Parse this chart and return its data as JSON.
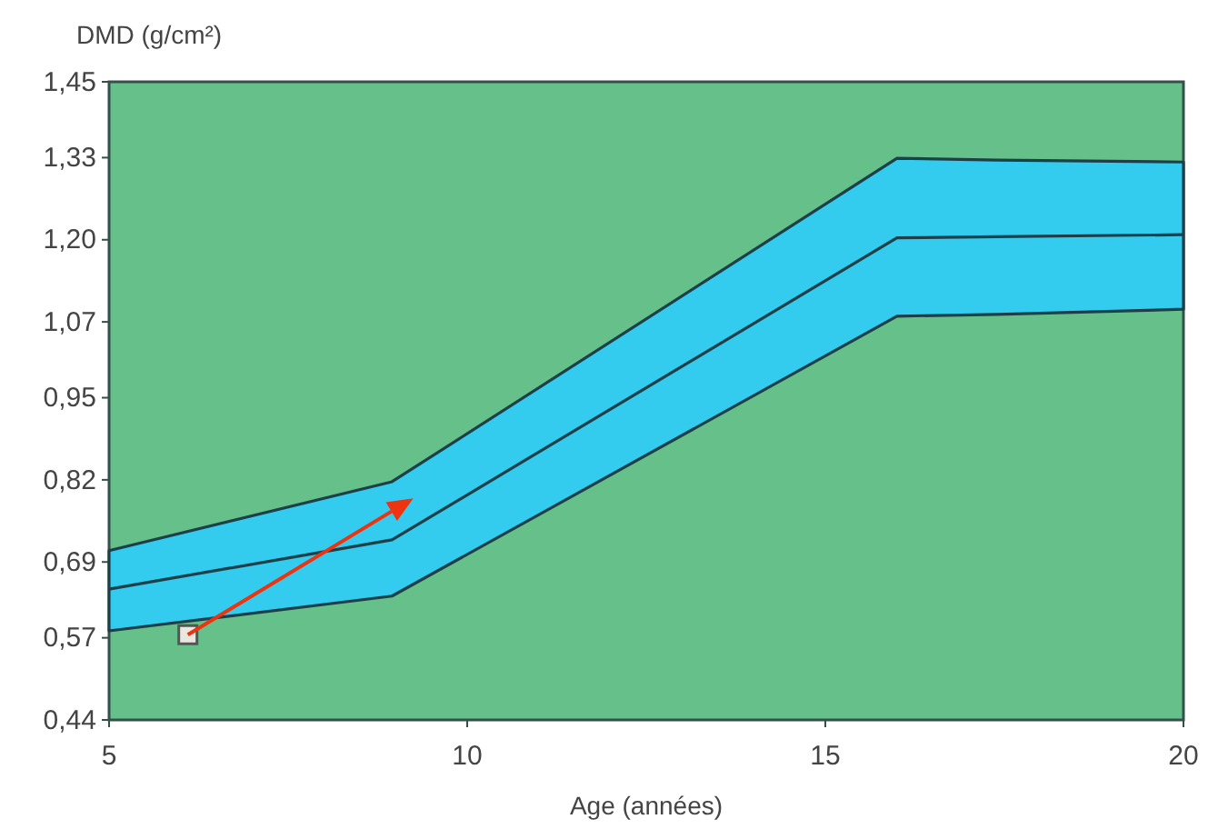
{
  "chart_data": {
    "type": "line",
    "ylabel": "DMD (g/cm²)",
    "xlabel": "Age (années)",
    "xlim": [
      5,
      20
    ],
    "xticks": [
      5,
      10,
      15,
      20
    ],
    "ylim": [
      0.44,
      1.45
    ],
    "yticks": [
      {
        "value": 0.44,
        "label": "0,44"
      },
      {
        "value": 0.57,
        "label": "0,57"
      },
      {
        "value": 0.69,
        "label": "0,69"
      },
      {
        "value": 0.82,
        "label": "0,82"
      },
      {
        "value": 0.95,
        "label": "0,95"
      },
      {
        "value": 1.07,
        "label": "1,07"
      },
      {
        "value": 1.2,
        "label": "1,20"
      },
      {
        "value": 1.33,
        "label": "1,33"
      },
      {
        "value": 1.45,
        "label": "1,45"
      }
    ],
    "grid": false,
    "marker": "none",
    "series": [
      {
        "color": "#1f3f48",
        "x": [
          5,
          8.95,
          16,
          17.4,
          20
        ],
        "values": [
          0.647,
          0.725,
          1.203,
          1.205,
          1.208
        ],
        "lower": [
          0.581,
          0.636,
          1.079,
          1.082,
          1.09
        ],
        "upper": [
          0.708,
          0.817,
          1.329,
          1.326,
          1.323
        ]
      },
      {
        "type": "scatter",
        "color": "#555555",
        "marker": "square",
        "x": [
          6.1
        ],
        "values": [
          0.575
        ]
      }
    ]
  }
}
